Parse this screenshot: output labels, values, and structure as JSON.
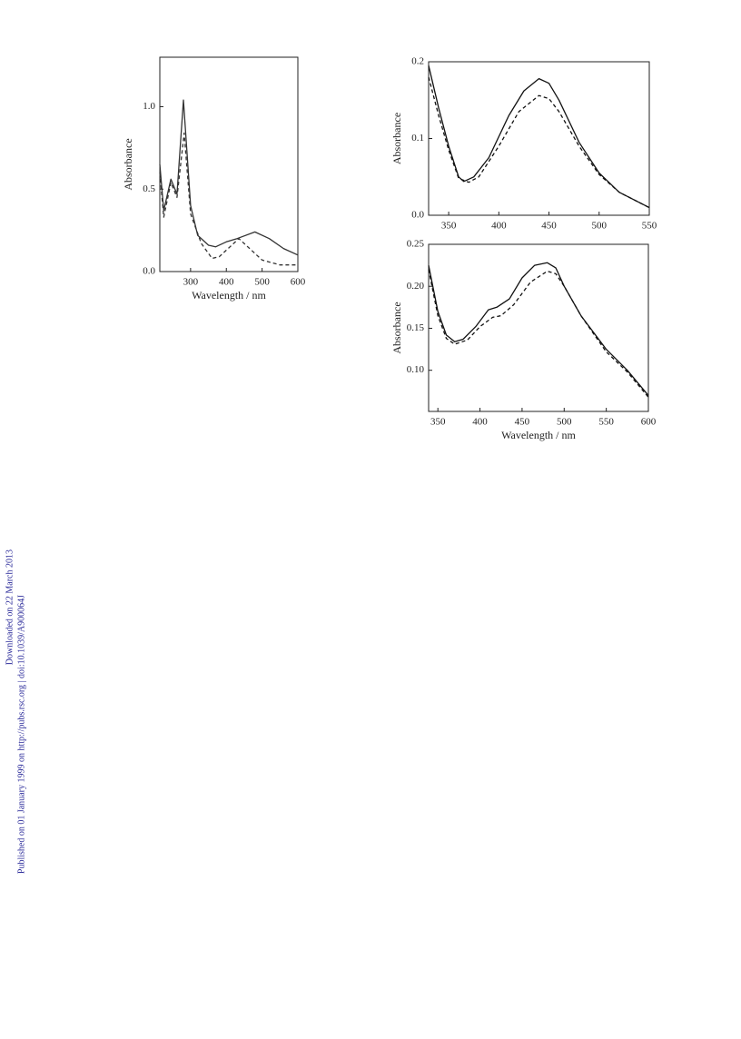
{
  "sidebar": {
    "line1": "Downloaded on 22 March 2013",
    "line2": "Published on 01 January 1999 on http://pubs.rsc.org | doi:10.1039/A900064J"
  },
  "chart_data": [
    {
      "type": "line",
      "ylabel": "Absorbance",
      "xlabel": "Wavelength / nm",
      "xlim": [
        214,
        600
      ],
      "xticks": [
        300,
        400,
        500,
        600
      ],
      "ylim": [
        0,
        1.3
      ],
      "yticks": [
        {
          "value": 0,
          "label": "0.0"
        },
        {
          "value": 0.5,
          "label": "0.5"
        },
        {
          "value": 1.0,
          "label": "1.0"
        }
      ],
      "series": [
        {
          "color": "#333333",
          "style": "solid",
          "x": [
            214,
            225,
            245,
            262,
            280,
            300,
            320,
            350,
            370,
            400,
            430,
            480,
            520,
            560,
            600
          ],
          "values": [
            0.65,
            0.37,
            0.56,
            0.47,
            1.04,
            0.4,
            0.22,
            0.16,
            0.15,
            0.18,
            0.2,
            0.24,
            0.2,
            0.14,
            0.1
          ]
        },
        {
          "color": "#333333",
          "style": "dashed",
          "x": [
            214,
            225,
            245,
            262,
            282,
            300,
            330,
            360,
            380,
            410,
            435,
            460,
            500,
            550,
            600
          ],
          "values": [
            0.6,
            0.33,
            0.54,
            0.45,
            0.84,
            0.35,
            0.17,
            0.08,
            0.09,
            0.15,
            0.2,
            0.15,
            0.07,
            0.04,
            0.04
          ]
        }
      ]
    },
    {
      "type": "line",
      "ylabel": "Absorbance",
      "xlim": [
        330,
        550
      ],
      "xticks": [
        350,
        400,
        450,
        500,
        550
      ],
      "ylim": [
        0,
        0.2
      ],
      "yticks": [
        {
          "value": 0,
          "label": "0.0"
        },
        0.1,
        0.2
      ],
      "series": [
        {
          "color": "#111111",
          "style": "solid",
          "x": [
            330,
            340,
            350,
            360,
            365,
            375,
            390,
            410,
            425,
            440,
            450,
            460,
            480,
            500,
            520,
            550
          ],
          "values": [
            0.195,
            0.14,
            0.09,
            0.05,
            0.044,
            0.05,
            0.075,
            0.13,
            0.162,
            0.178,
            0.172,
            0.15,
            0.095,
            0.055,
            0.03,
            0.01
          ]
        },
        {
          "color": "#111111",
          "style": "dashed",
          "x": [
            330,
            340,
            350,
            360,
            370,
            380,
            400,
            420,
            440,
            450,
            460,
            480,
            500,
            520,
            550
          ],
          "values": [
            0.18,
            0.13,
            0.085,
            0.048,
            0.043,
            0.05,
            0.09,
            0.135,
            0.156,
            0.152,
            0.135,
            0.09,
            0.053,
            0.03,
            0.01
          ]
        }
      ]
    },
    {
      "type": "line",
      "ylabel": "Absorbance",
      "xlabel": "Wavelength / nm",
      "xlim": [
        339,
        600
      ],
      "xticks": [
        350,
        400,
        450,
        500,
        550,
        600
      ],
      "ylim": [
        0.051,
        0.25
      ],
      "yticks": [
        {
          "value": 0.1,
          "label": "0.10"
        },
        0.15,
        {
          "value": 0.2,
          "label": "0.20"
        },
        0.25
      ],
      "series": [
        {
          "color": "#111111",
          "style": "solid",
          "x": [
            339,
            350,
            360,
            370,
            380,
            395,
            410,
            420,
            435,
            450,
            465,
            480,
            490,
            500,
            520,
            550,
            575,
            600
          ],
          "values": [
            0.225,
            0.17,
            0.142,
            0.134,
            0.137,
            0.152,
            0.172,
            0.175,
            0.185,
            0.21,
            0.225,
            0.228,
            0.222,
            0.2,
            0.165,
            0.125,
            0.1,
            0.07
          ]
        },
        {
          "color": "#111111",
          "style": "dashed",
          "x": [
            339,
            350,
            360,
            370,
            385,
            400,
            415,
            425,
            440,
            460,
            480,
            490,
            500,
            520,
            550,
            575,
            600
          ],
          "values": [
            0.22,
            0.165,
            0.138,
            0.131,
            0.136,
            0.152,
            0.163,
            0.165,
            0.178,
            0.205,
            0.218,
            0.215,
            0.2,
            0.165,
            0.122,
            0.098,
            0.068
          ]
        }
      ]
    }
  ]
}
